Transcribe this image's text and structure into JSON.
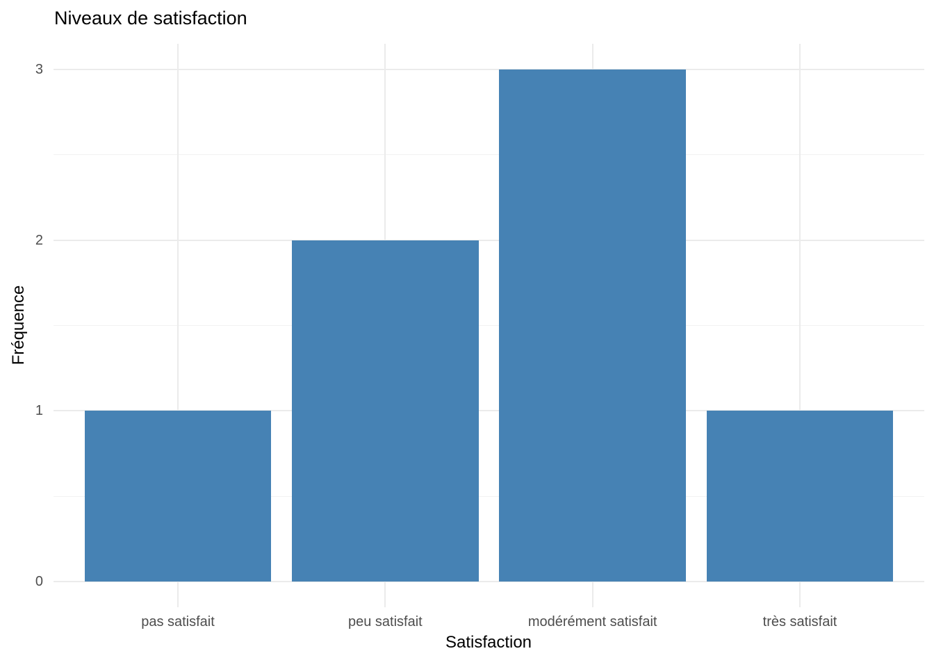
{
  "chart_data": {
    "type": "bar",
    "title": "Niveaux de satisfaction",
    "xlabel": "Satisfaction",
    "ylabel": "Fréquence",
    "categories": [
      "pas satisfait",
      "peu satisfait",
      "modérément satisfait",
      "très satisfait"
    ],
    "values": [
      1,
      2,
      3,
      1
    ],
    "y_ticks": [
      0,
      1,
      2,
      3
    ],
    "y_minor_ticks": [
      0.5,
      1.5,
      2.5
    ],
    "ylim": [
      -0.15,
      3.15
    ],
    "bar_rel_width": 0.9,
    "grid": "on",
    "legend_position": "none",
    "colors": {
      "bar_fill": "#4682B4",
      "grid_major": "#EBEBEB",
      "grid_minor": "#F2F2F2",
      "tick_label": "#4D4D4D",
      "title_text": "#000000",
      "background": "#FFFFFF"
    }
  }
}
